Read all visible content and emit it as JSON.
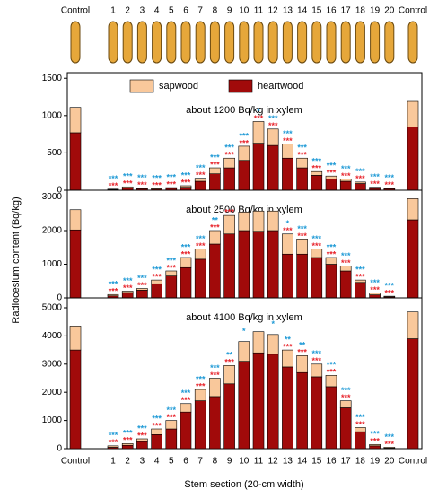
{
  "chart_data": {
    "type": "bar",
    "stacked": true,
    "y_label": "Radiocesium content (Bq/kg)",
    "x_label": "Stem section (20-cm width)",
    "categories": [
      "Control",
      "1",
      "2",
      "3",
      "4",
      "5",
      "6",
      "7",
      "8",
      "9",
      "10",
      "11",
      "12",
      "13",
      "14",
      "15",
      "16",
      "17",
      "18",
      "19",
      "20",
      "Control"
    ],
    "series": [
      {
        "name": "sapwood",
        "color": "#f9c89b"
      },
      {
        "name": "heartwood",
        "color": "#a10a0a"
      }
    ],
    "legend": "upper center",
    "panels": [
      {
        "annotation": "about 1200 Bq/kg in xylem",
        "ylim": [
          0,
          1575
        ],
        "yticks": [
          0,
          500,
          1000,
          1500
        ],
        "heartwood": [
          770,
          10,
          30,
          20,
          15,
          25,
          40,
          120,
          220,
          300,
          400,
          630,
          600,
          430,
          300,
          200,
          150,
          120,
          90,
          25,
          20,
          850
        ],
        "sapwood": [
          340,
          5,
          15,
          10,
          10,
          10,
          20,
          40,
          80,
          130,
          190,
          290,
          220,
          190,
          130,
          50,
          40,
          30,
          20,
          15,
          10,
          340
        ],
        "sig_sapwood": [
          null,
          "***",
          "***",
          "***",
          "***",
          "***",
          "***",
          "***",
          "***",
          "***",
          "***",
          "*",
          "***",
          "***",
          "***",
          "***",
          "***",
          "***",
          "***",
          "***",
          "***",
          null
        ],
        "sig_heartwood": [
          null,
          "***",
          "***",
          "***",
          "***",
          "***",
          "***",
          "***",
          "***",
          "***",
          "***",
          "***",
          "***",
          "***",
          "***",
          "***",
          "***",
          "***",
          "***",
          "***",
          "***",
          null
        ]
      },
      {
        "annotation": "about 2500 Bq/kg in xylem",
        "ylim": [
          0,
          3200
        ],
        "yticks": [
          0,
          1000,
          2000,
          3000
        ],
        "heartwood": [
          2020,
          60,
          160,
          230,
          420,
          650,
          900,
          1150,
          1600,
          1900,
          2000,
          1980,
          2000,
          1300,
          1300,
          1200,
          1000,
          800,
          460,
          90,
          30,
          2320
        ],
        "sapwood": [
          600,
          40,
          40,
          50,
          110,
          150,
          300,
          300,
          400,
          550,
          550,
          600,
          580,
          600,
          450,
          250,
          200,
          150,
          70,
          60,
          20,
          630
        ],
        "sig_sapwood": [
          null,
          "***",
          "***",
          "***",
          "***",
          "***",
          "***",
          "***",
          "**",
          null,
          null,
          null,
          null,
          "*",
          "***",
          "***",
          "***",
          "***",
          "***",
          "***",
          "***",
          null
        ],
        "sig_heartwood": [
          null,
          "***",
          "***",
          "***",
          "***",
          "***",
          "***",
          "***",
          "***",
          "***",
          null,
          null,
          null,
          "***",
          "***",
          "***",
          "***",
          "***",
          "***",
          "***",
          "***",
          null
        ]
      },
      {
        "annotation": "about 4100 Bq/kg in xylem",
        "ylim": [
          0,
          5350
        ],
        "yticks": [
          0,
          1000,
          2000,
          3000,
          4000,
          5000
        ],
        "heartwood": [
          3500,
          50,
          120,
          250,
          500,
          700,
          1300,
          1700,
          1850,
          2300,
          3100,
          3400,
          3350,
          2900,
          2700,
          2550,
          2200,
          1450,
          600,
          100,
          20,
          3900
        ],
        "sapwood": [
          850,
          50,
          60,
          100,
          200,
          300,
          300,
          400,
          650,
          650,
          700,
          750,
          700,
          600,
          600,
          450,
          400,
          250,
          150,
          50,
          30,
          950
        ],
        "sig_sapwood": [
          null,
          "***",
          "***",
          "***",
          "***",
          "***",
          "***",
          "***",
          "***",
          "**",
          "*",
          null,
          "*",
          "**",
          "**",
          "***",
          "***",
          "***",
          "***",
          "***",
          "***",
          null
        ],
        "sig_heartwood": [
          null,
          "***",
          "***",
          "***",
          "***",
          "***",
          "***",
          "***",
          "***",
          "***",
          null,
          null,
          null,
          "***",
          "***",
          "***",
          "***",
          "***",
          "***",
          "***",
          "***",
          null
        ]
      }
    ]
  }
}
